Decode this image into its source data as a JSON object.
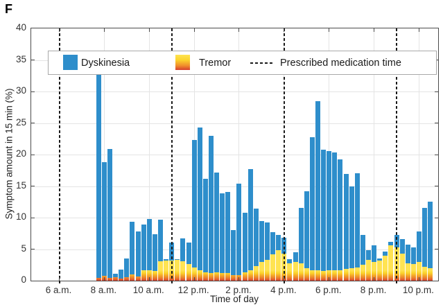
{
  "figure": {
    "panel_label": "F"
  },
  "colors": {
    "dyskinesia": "#2e8ecb",
    "tremor_gradient_top": "#ffe352",
    "tremor_gradient_mid": "#f08c2c",
    "tremor_gradient_bottom": "#d63f2e",
    "medication_line": "#1a1a1a",
    "gridline": "#e4e4e4",
    "axis": "#4a4a4a"
  },
  "chart_data": {
    "type": "bar",
    "stacked": true,
    "title": "",
    "xlabel": "Time of day",
    "ylabel": "Symptom amount in 15 min (%)",
    "ylim": [
      0,
      40
    ],
    "yticks": [
      0,
      5,
      10,
      15,
      20,
      25,
      30,
      35,
      40
    ],
    "x_domain_hours": [
      4.75,
      22.85
    ],
    "bar_interval_min": 15,
    "grid": true,
    "legend_position": "top-inside",
    "xticks": [
      {
        "hour": 6,
        "label": "6 a.m."
      },
      {
        "hour": 8,
        "label": "8 a.m."
      },
      {
        "hour": 10,
        "label": "10 a.m."
      },
      {
        "hour": 12,
        "label": "12 p.m."
      },
      {
        "hour": 14,
        "label": "2 p.m."
      },
      {
        "hour": 16,
        "label": "4 p.m."
      },
      {
        "hour": 18,
        "label": "6 p.m."
      },
      {
        "hour": 20,
        "label": "8 p.m."
      },
      {
        "hour": 22,
        "label": "10 p.m."
      }
    ],
    "medication_times_hours": [
      6,
      11,
      16,
      21
    ],
    "legend": {
      "items": [
        {
          "label": "Dyskinesia",
          "swatch": "solid-blue"
        },
        {
          "label": "Tremor",
          "swatch": "yellow-red-gradient"
        },
        {
          "label": "Prescribed medication time",
          "swatch": "dashed-line"
        }
      ]
    },
    "bars": [
      {
        "time": "07:45",
        "tremor": 0.4,
        "dyskinesia": 32.4
      },
      {
        "time": "08:00",
        "tremor": 0.8,
        "dyskinesia": 18.0
      },
      {
        "time": "08:15",
        "tremor": 0.4,
        "dyskinesia": 20.5
      },
      {
        "time": "08:30",
        "tremor": 0.6,
        "dyskinesia": 0.5
      },
      {
        "time": "08:45",
        "tremor": 0.3,
        "dyskinesia": 1.5
      },
      {
        "time": "09:00",
        "tremor": 0.5,
        "dyskinesia": 3.0
      },
      {
        "time": "09:15",
        "tremor": 1.0,
        "dyskinesia": 8.3
      },
      {
        "time": "09:30",
        "tremor": 0.7,
        "dyskinesia": 7.1
      },
      {
        "time": "09:45",
        "tremor": 1.7,
        "dyskinesia": 7.2
      },
      {
        "time": "10:00",
        "tremor": 1.6,
        "dyskinesia": 8.2
      },
      {
        "time": "10:15",
        "tremor": 1.5,
        "dyskinesia": 5.9
      },
      {
        "time": "10:30",
        "tremor": 3.1,
        "dyskinesia": 6.6
      },
      {
        "time": "10:45",
        "tremor": 3.2,
        "dyskinesia": 0.2
      },
      {
        "time": "11:00",
        "tremor": 3.2,
        "dyskinesia": 2.8
      },
      {
        "time": "11:15",
        "tremor": 3.3,
        "dyskinesia": 0.1
      },
      {
        "time": "11:30",
        "tremor": 3.1,
        "dyskinesia": 3.6
      },
      {
        "time": "11:45",
        "tremor": 2.6,
        "dyskinesia": 3.4
      },
      {
        "time": "12:00",
        "tremor": 2.1,
        "dyskinesia": 20.2
      },
      {
        "time": "12:15",
        "tremor": 1.7,
        "dyskinesia": 22.6
      },
      {
        "time": "12:30",
        "tremor": 1.3,
        "dyskinesia": 14.8
      },
      {
        "time": "12:45",
        "tremor": 1.2,
        "dyskinesia": 21.8
      },
      {
        "time": "13:00",
        "tremor": 1.3,
        "dyskinesia": 15.8
      },
      {
        "time": "13:15",
        "tremor": 1.2,
        "dyskinesia": 12.6
      },
      {
        "time": "13:30",
        "tremor": 1.2,
        "dyskinesia": 12.9
      },
      {
        "time": "13:45",
        "tremor": 0.9,
        "dyskinesia": 7.1
      },
      {
        "time": "14:00",
        "tremor": 0.9,
        "dyskinesia": 14.5
      },
      {
        "time": "14:15",
        "tremor": 1.3,
        "dyskinesia": 9.5
      },
      {
        "time": "14:30",
        "tremor": 1.7,
        "dyskinesia": 16.0
      },
      {
        "time": "14:45",
        "tremor": 2.3,
        "dyskinesia": 9.1
      },
      {
        "time": "15:00",
        "tremor": 3.0,
        "dyskinesia": 6.5
      },
      {
        "time": "15:15",
        "tremor": 3.3,
        "dyskinesia": 5.9
      },
      {
        "time": "15:30",
        "tremor": 4.2,
        "dyskinesia": 3.5
      },
      {
        "time": "15:45",
        "tremor": 4.8,
        "dyskinesia": 2.5
      },
      {
        "time": "16:00",
        "tremor": 4.3,
        "dyskinesia": 2.5
      },
      {
        "time": "16:15",
        "tremor": 2.7,
        "dyskinesia": 0.7
      },
      {
        "time": "16:30",
        "tremor": 3.0,
        "dyskinesia": 1.5
      },
      {
        "time": "16:45",
        "tremor": 2.8,
        "dyskinesia": 8.7
      },
      {
        "time": "17:00",
        "tremor": 2.0,
        "dyskinesia": 12.2
      },
      {
        "time": "17:15",
        "tremor": 1.7,
        "dyskinesia": 21.0
      },
      {
        "time": "17:30",
        "tremor": 1.6,
        "dyskinesia": 26.9
      },
      {
        "time": "17:45",
        "tremor": 1.5,
        "dyskinesia": 19.3
      },
      {
        "time": "18:00",
        "tremor": 1.6,
        "dyskinesia": 18.9
      },
      {
        "time": "18:15",
        "tremor": 1.7,
        "dyskinesia": 18.6
      },
      {
        "time": "18:30",
        "tremor": 1.7,
        "dyskinesia": 17.5
      },
      {
        "time": "18:45",
        "tremor": 1.9,
        "dyskinesia": 15.0
      },
      {
        "time": "19:00",
        "tremor": 2.0,
        "dyskinesia": 12.9
      },
      {
        "time": "19:15",
        "tremor": 2.1,
        "dyskinesia": 14.9
      },
      {
        "time": "19:30",
        "tremor": 2.5,
        "dyskinesia": 4.8
      },
      {
        "time": "19:45",
        "tremor": 3.3,
        "dyskinesia": 1.5
      },
      {
        "time": "20:00",
        "tremor": 3.0,
        "dyskinesia": 2.6
      },
      {
        "time": "20:15",
        "tremor": 3.2,
        "dyskinesia": 0.3
      },
      {
        "time": "20:30",
        "tremor": 4.0,
        "dyskinesia": 0.6
      },
      {
        "time": "20:45",
        "tremor": 5.6,
        "dyskinesia": 0.6
      },
      {
        "time": "21:00",
        "tremor": 5.3,
        "dyskinesia": 2.0
      },
      {
        "time": "21:15",
        "tremor": 4.3,
        "dyskinesia": 2.3
      },
      {
        "time": "21:30",
        "tremor": 2.7,
        "dyskinesia": 3.0
      },
      {
        "time": "21:45",
        "tremor": 2.6,
        "dyskinesia": 2.7
      },
      {
        "time": "22:00",
        "tremor": 3.0,
        "dyskinesia": 4.8
      },
      {
        "time": "22:15",
        "tremor": 2.2,
        "dyskinesia": 9.3
      },
      {
        "time": "22:30",
        "tremor": 2.0,
        "dyskinesia": 10.5
      }
    ]
  }
}
